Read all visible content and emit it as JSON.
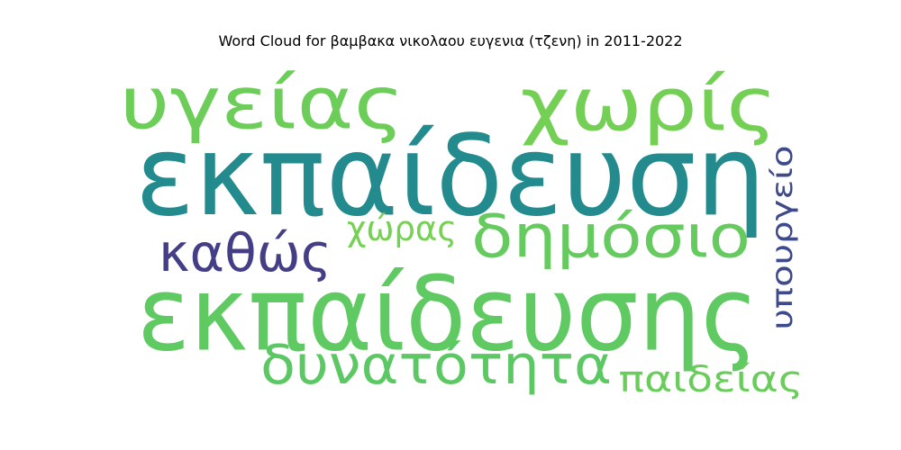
{
  "chart_data": {
    "type": "wordcloud",
    "title": "Word Cloud for βαμβακα νικολαου ευγενια (τζενη) in 2011-2022",
    "grid": false,
    "legend": "none",
    "words": [
      {
        "text": "εκπαίδευση",
        "weight": 1.0,
        "color": "#238A8D",
        "orientation": "horizontal"
      },
      {
        "text": "εκπαίδευσης",
        "weight": 0.95,
        "color": "#5FC962",
        "orientation": "horizontal"
      },
      {
        "text": "υγείας",
        "weight": 0.82,
        "color": "#6CCE59",
        "orientation": "horizontal"
      },
      {
        "text": "χωρίς",
        "weight": 0.82,
        "color": "#74D055",
        "orientation": "horizontal"
      },
      {
        "text": "δημόσιο",
        "weight": 0.62,
        "color": "#65CB5E",
        "orientation": "horizontal"
      },
      {
        "text": "δυνατότητα",
        "weight": 0.58,
        "color": "#5CC863",
        "orientation": "horizontal"
      },
      {
        "text": "καθώς",
        "weight": 0.56,
        "color": "#433E85",
        "orientation": "horizontal"
      },
      {
        "text": "υπουργείο",
        "weight": 0.4,
        "color": "#3E4A89",
        "orientation": "vertical"
      },
      {
        "text": "παιδείας",
        "weight": 0.38,
        "color": "#6ACD5B",
        "orientation": "horizontal"
      },
      {
        "text": "χώρας",
        "weight": 0.36,
        "color": "#75D054",
        "orientation": "horizontal"
      }
    ]
  }
}
